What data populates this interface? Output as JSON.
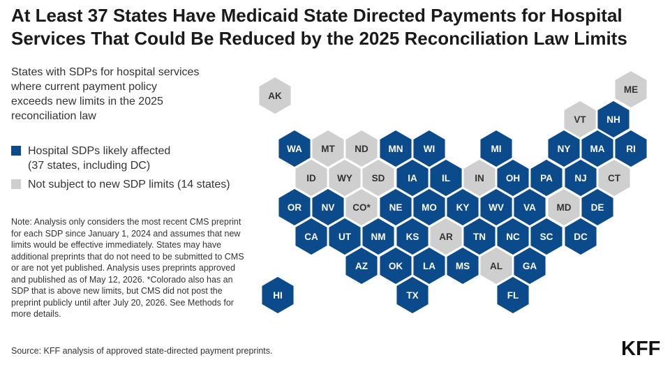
{
  "title": {
    "line1": "At Least 37 States Have Medicaid State Directed Payments for Hospital",
    "line2": "Services That Could Be Reduced by the 2025 Reconciliation Law Limits"
  },
  "subtitle": "States with SDPs for hospital services where current payment policy exceeds new limits in the 2025 reconciliation law",
  "legend": {
    "affected": {
      "line1": "Hospital SDPs likely affected",
      "line2": "(37 states, including DC)",
      "color": "#0b4a8b"
    },
    "not_subject": {
      "label": "Not subject to new SDP limits (14 states)",
      "color": "#cfcfcf"
    }
  },
  "note": "Note: Analysis only considers the most recent CMS preprint for each SDP since January 1, 2024 and assumes that new limits would be effective immediately. States may have additional preprints that do not need to be submitted to CMS or are not yet published. Analysis uses preprints approved and published as of May 12, 2026. *Colorado also has an SDP that is above new limits, but CMS did not post the preprint publicly until after July 20, 2026. See Methods for more details.",
  "source": "Source: KFF analysis of approved state-directed payment preprints.",
  "logo": "KFF",
  "map_data": {
    "states": [
      {
        "label": "AK",
        "status": "not_subject"
      },
      {
        "label": "ME",
        "status": "not_subject"
      },
      {
        "label": "VT",
        "status": "not_subject"
      },
      {
        "label": "NH",
        "status": "affected"
      },
      {
        "label": "WA",
        "status": "affected"
      },
      {
        "label": "MT",
        "status": "not_subject"
      },
      {
        "label": "ND",
        "status": "not_subject"
      },
      {
        "label": "MN",
        "status": "affected"
      },
      {
        "label": "WI",
        "status": "affected"
      },
      {
        "label": "MI",
        "status": "affected"
      },
      {
        "label": "NY",
        "status": "affected"
      },
      {
        "label": "MA",
        "status": "affected"
      },
      {
        "label": "RI",
        "status": "affected"
      },
      {
        "label": "ID",
        "status": "not_subject"
      },
      {
        "label": "WY",
        "status": "not_subject"
      },
      {
        "label": "SD",
        "status": "not_subject"
      },
      {
        "label": "IA",
        "status": "affected"
      },
      {
        "label": "IL",
        "status": "affected"
      },
      {
        "label": "IN",
        "status": "not_subject"
      },
      {
        "label": "OH",
        "status": "affected"
      },
      {
        "label": "PA",
        "status": "affected"
      },
      {
        "label": "NJ",
        "status": "affected"
      },
      {
        "label": "CT",
        "status": "not_subject"
      },
      {
        "label": "OR",
        "status": "affected"
      },
      {
        "label": "NV",
        "status": "affected"
      },
      {
        "label": "CO*",
        "status": "not_subject"
      },
      {
        "label": "NE",
        "status": "affected"
      },
      {
        "label": "MO",
        "status": "affected"
      },
      {
        "label": "KY",
        "status": "affected"
      },
      {
        "label": "WV",
        "status": "affected"
      },
      {
        "label": "VA",
        "status": "affected"
      },
      {
        "label": "MD",
        "status": "not_subject"
      },
      {
        "label": "DE",
        "status": "affected"
      },
      {
        "label": "CA",
        "status": "affected"
      },
      {
        "label": "UT",
        "status": "affected"
      },
      {
        "label": "NM",
        "status": "affected"
      },
      {
        "label": "KS",
        "status": "affected"
      },
      {
        "label": "AR",
        "status": "not_subject"
      },
      {
        "label": "TN",
        "status": "affected"
      },
      {
        "label": "NC",
        "status": "affected"
      },
      {
        "label": "SC",
        "status": "affected"
      },
      {
        "label": "DC",
        "status": "affected"
      },
      {
        "label": "AZ",
        "status": "affected"
      },
      {
        "label": "OK",
        "status": "affected"
      },
      {
        "label": "LA",
        "status": "affected"
      },
      {
        "label": "MS",
        "status": "affected"
      },
      {
        "label": "AL",
        "status": "not_subject"
      },
      {
        "label": "GA",
        "status": "affected"
      },
      {
        "label": "HI",
        "status": "affected"
      },
      {
        "label": "TX",
        "status": "affected"
      },
      {
        "label": "FL",
        "status": "affected"
      }
    ]
  }
}
